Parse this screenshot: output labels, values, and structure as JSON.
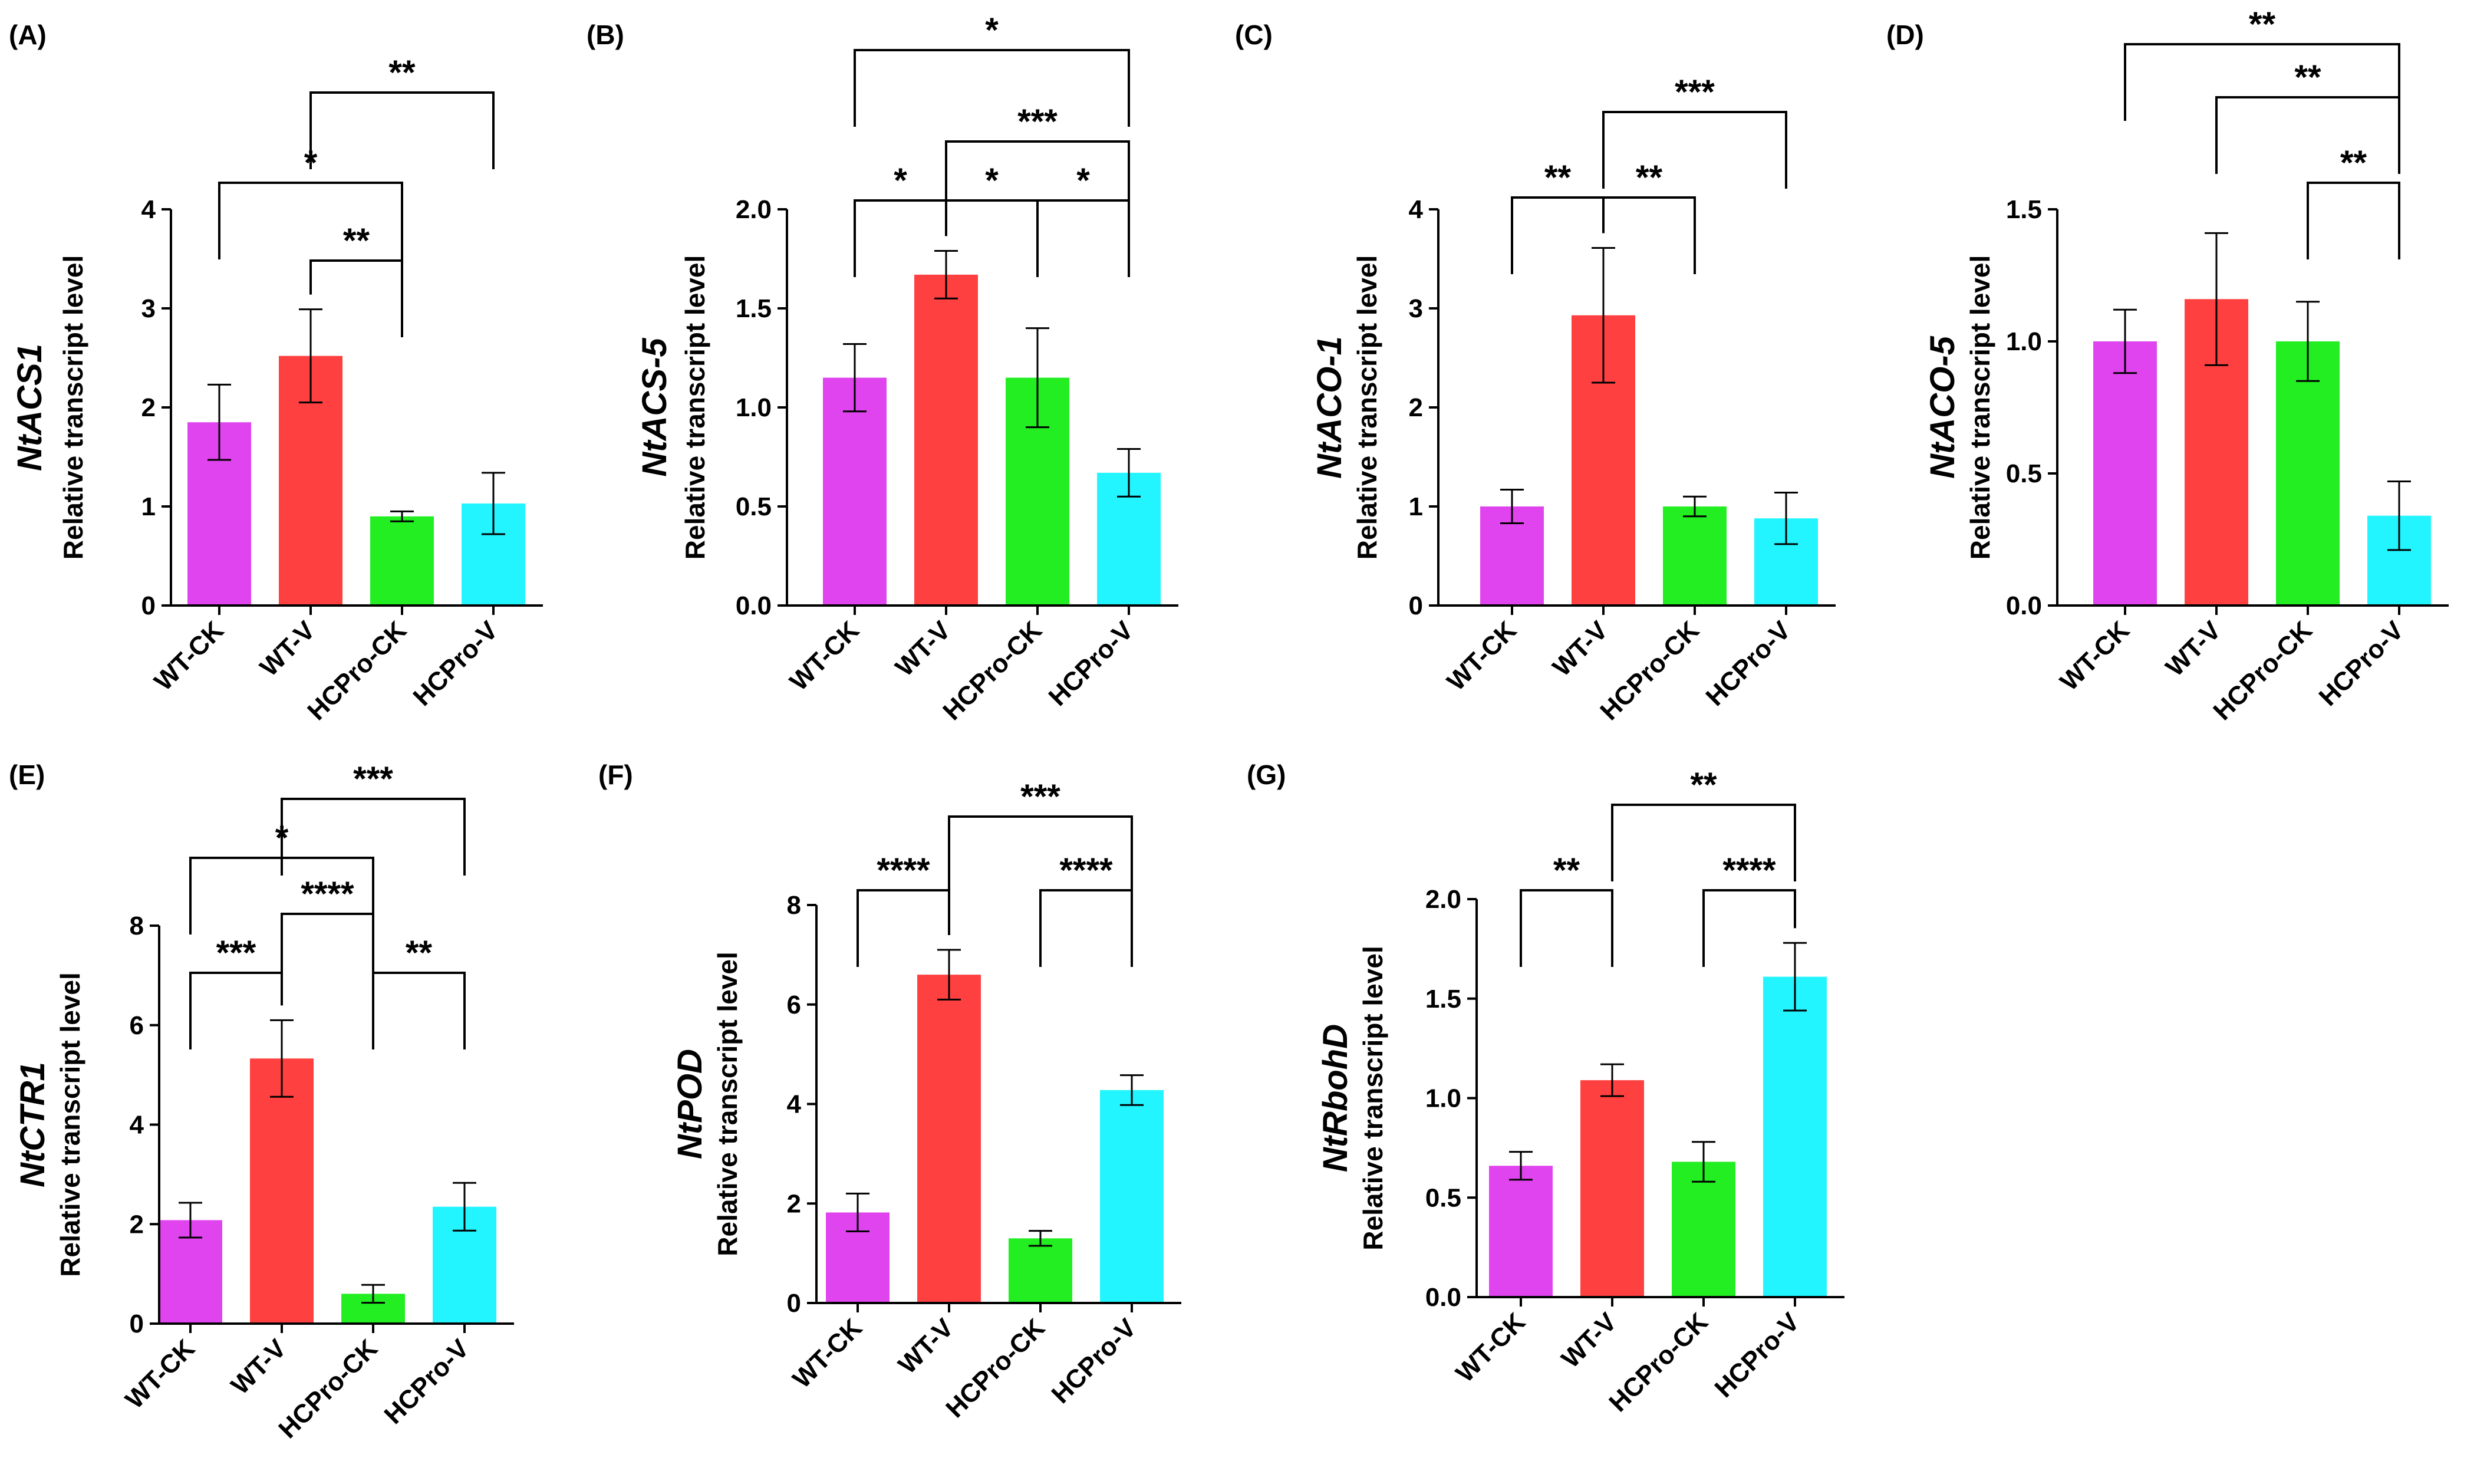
{
  "colors": {
    "WT-CK": "#e044ef",
    "WT-V": "#ff4040",
    "HCPro-CK": "#22ee22",
    "HCPro-V": "#22f5ff",
    "axis": "#000000"
  },
  "chart_data": [
    {
      "type": "bar",
      "panel": "(A)",
      "gene": "NtACS1",
      "ylabel": "Relative transcript level",
      "categories": [
        "WT-CK",
        "WT-V",
        "HCPro-CK",
        "HCPro-V"
      ],
      "values": [
        1.85,
        2.52,
        0.9,
        1.03
      ],
      "errors": [
        0.38,
        0.47,
        0.05,
        0.31
      ],
      "ylim": [
        0,
        4
      ],
      "yticks": [
        0,
        1,
        2,
        3,
        4
      ],
      "yticklabels": [
        "0",
        "1",
        "2",
        "3",
        "4"
      ],
      "brackets": [
        {
          "from": 1,
          "to": 2,
          "label": "**"
        },
        {
          "from": 0,
          "to": 2,
          "label": "*"
        },
        {
          "from": 1,
          "to": 3,
          "label": "**"
        }
      ]
    },
    {
      "type": "bar",
      "panel": "(B)",
      "gene": "NtACS-5",
      "ylabel": "Relative transcript level",
      "categories": [
        "WT-CK",
        "WT-V",
        "HCPro-CK",
        "HCPro-V"
      ],
      "values": [
        1.15,
        1.67,
        1.15,
        0.67
      ],
      "errors": [
        0.17,
        0.12,
        0.25,
        0.12
      ],
      "ylim": [
        0,
        2.0
      ],
      "yticks": [
        0,
        0.5,
        1.0,
        1.5,
        2.0
      ],
      "yticklabels": [
        "0.0",
        "0.5",
        "1.0",
        "1.5",
        "2.0"
      ],
      "brackets": [
        {
          "from": 0,
          "to": 1,
          "label": "*"
        },
        {
          "from": 1,
          "to": 2,
          "label": "*"
        },
        {
          "from": 2,
          "to": 3,
          "label": "*"
        },
        {
          "from": 1,
          "to": 3,
          "label": "***"
        },
        {
          "from": 0,
          "to": 3,
          "label": "*"
        }
      ]
    },
    {
      "type": "bar",
      "panel": "(C)",
      "gene": "NtACO-1",
      "ylabel": "Relative transcript level",
      "categories": [
        "WT-CK",
        "WT-V",
        "HCPro-CK",
        "HCPro-V"
      ],
      "values": [
        1.0,
        2.93,
        1.0,
        0.88
      ],
      "errors": [
        0.17,
        0.68,
        0.1,
        0.26
      ],
      "ylim": [
        0,
        4
      ],
      "yticks": [
        0,
        1,
        2,
        3,
        4
      ],
      "yticklabels": [
        "0",
        "1",
        "2",
        "3",
        "4"
      ],
      "brackets": [
        {
          "from": 0,
          "to": 1,
          "label": "**"
        },
        {
          "from": 1,
          "to": 2,
          "label": "**"
        },
        {
          "from": 1,
          "to": 3,
          "label": "***"
        }
      ]
    },
    {
      "type": "bar",
      "panel": "(D)",
      "gene": "NtACO-5",
      "ylabel": "Relative transcript level",
      "categories": [
        "WT-CK",
        "WT-V",
        "HCPro-CK",
        "HCPro-V"
      ],
      "values": [
        1.0,
        1.16,
        1.0,
        0.34
      ],
      "errors": [
        0.12,
        0.25,
        0.15,
        0.13
      ],
      "ylim": [
        0,
        1.5
      ],
      "yticks": [
        0,
        0.5,
        1.0,
        1.5
      ],
      "yticklabels": [
        "0.0",
        "0.5",
        "1.0",
        "1.5"
      ],
      "brackets": [
        {
          "from": 2,
          "to": 3,
          "label": "**"
        },
        {
          "from": 1,
          "to": 3,
          "label": "**"
        },
        {
          "from": 0,
          "to": 3,
          "label": "**"
        }
      ]
    },
    {
      "type": "bar",
      "panel": "(E)",
      "gene": "NtCTR1",
      "ylabel": "Relative transcript level",
      "categories": [
        "WT-CK",
        "WT-V",
        "HCPro-CK",
        "HCPro-V"
      ],
      "values": [
        2.08,
        5.33,
        0.6,
        2.35
      ],
      "errors": [
        0.35,
        0.77,
        0.18,
        0.48
      ],
      "ylim": [
        0,
        8
      ],
      "yticks": [
        0,
        2,
        4,
        6,
        8
      ],
      "yticklabels": [
        "0",
        "2",
        "4",
        "6",
        "8"
      ],
      "brackets": [
        {
          "from": 0,
          "to": 1,
          "label": "***"
        },
        {
          "from": 2,
          "to": 3,
          "label": "**"
        },
        {
          "from": 1,
          "to": 2,
          "label": "****"
        },
        {
          "from": 0,
          "to": 2,
          "label": "*"
        },
        {
          "from": 1,
          "to": 3,
          "label": "***"
        }
      ]
    },
    {
      "type": "bar",
      "panel": "(F)",
      "gene": "NtPOD",
      "ylabel": "Relative transcript level",
      "categories": [
        "WT-CK",
        "WT-V",
        "HCPro-CK",
        "HCPro-V"
      ],
      "values": [
        1.82,
        6.6,
        1.3,
        4.28
      ],
      "errors": [
        0.38,
        0.5,
        0.15,
        0.3
      ],
      "ylim": [
        0,
        8
      ],
      "yticks": [
        0,
        2,
        4,
        6,
        8
      ],
      "yticklabels": [
        "0",
        "2",
        "4",
        "6",
        "8"
      ],
      "brackets": [
        {
          "from": 0,
          "to": 1,
          "label": "****"
        },
        {
          "from": 2,
          "to": 3,
          "label": "****"
        },
        {
          "from": 1,
          "to": 3,
          "label": "***"
        }
      ]
    },
    {
      "type": "bar",
      "panel": "(G)",
      "gene": "NtRbohD",
      "ylabel": "Relative transcript level",
      "categories": [
        "WT-CK",
        "WT-V",
        "HCPro-CK",
        "HCPro-V"
      ],
      "values": [
        0.66,
        1.09,
        0.68,
        1.61
      ],
      "errors": [
        0.07,
        0.08,
        0.1,
        0.17
      ],
      "ylim": [
        0,
        2.0
      ],
      "yticks": [
        0,
        0.5,
        1.0,
        1.5,
        2.0
      ],
      "yticklabels": [
        "0.0",
        "0.5",
        "1.0",
        "1.5",
        "2.0"
      ],
      "brackets": [
        {
          "from": 0,
          "to": 1,
          "label": "**"
        },
        {
          "from": 2,
          "to": 3,
          "label": "****"
        },
        {
          "from": 1,
          "to": 3,
          "label": "**"
        }
      ]
    }
  ]
}
